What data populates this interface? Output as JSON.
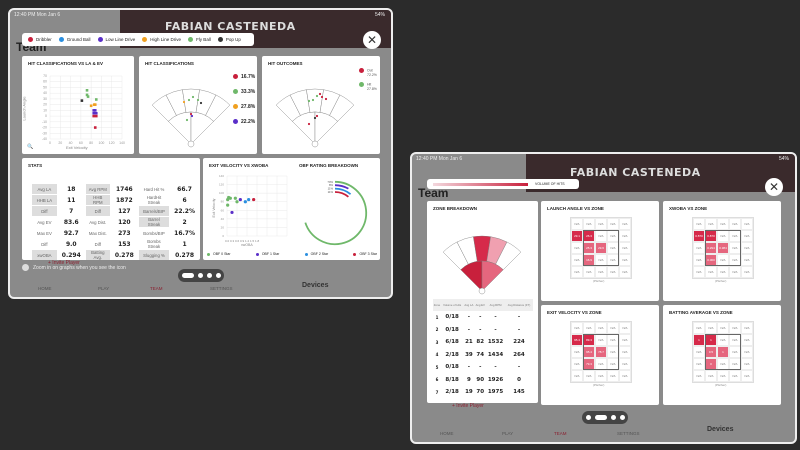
{
  "left": {
    "status_time": "12:40 PM  Mon Jan 6",
    "battery": "54%",
    "player_name": "FABIAN CASTENEDA",
    "bg_title": "Team",
    "legend": [
      {
        "label": "Dribbler",
        "color": "#c8203c"
      },
      {
        "label": "Ground Ball",
        "color": "#2a8fe0"
      },
      {
        "label": "Low Line Drive",
        "color": "#5a2fc8"
      },
      {
        "label": "High Line Drive",
        "color": "#f0a020"
      },
      {
        "label": "Fly Ball",
        "color": "#6fb86a"
      },
      {
        "label": "Pop Up",
        "color": "#333333"
      }
    ],
    "scatter": {
      "title": "HIT CLASSIFICATIONS VS LA & EV",
      "xlabel": "Exit Velocity",
      "ylabel": "Launch Angle",
      "xticks": [
        "0",
        "20",
        "40",
        "60",
        "80",
        "100",
        "120",
        "140"
      ],
      "yticks": [
        "70",
        "60",
        "50",
        "40",
        "30",
        "20",
        "10",
        "0",
        "-10",
        "-20",
        "-30",
        "-40"
      ],
      "points": [
        [
          72,
          45,
          4
        ],
        [
          72,
          37,
          4
        ],
        [
          74,
          34,
          4
        ],
        [
          62,
          27,
          5
        ],
        [
          90,
          29,
          4
        ],
        [
          80,
          18,
          3
        ],
        [
          86,
          20,
          3
        ],
        [
          88,
          20,
          3
        ],
        [
          85,
          10,
          2
        ],
        [
          88,
          10,
          2
        ],
        [
          85,
          5,
          2
        ],
        [
          90,
          5,
          2
        ],
        [
          85,
          0,
          0
        ],
        [
          90,
          0,
          0
        ],
        [
          88,
          -20,
          0
        ]
      ]
    },
    "hit_class": {
      "title": "HIT CLASSIFICATIONS",
      "pcts": [
        {
          "v": "16.7%",
          "color": "#c8203c"
        },
        {
          "v": "33.3%",
          "color": "#6fb86a"
        },
        {
          "v": "27.8%",
          "color": "#f0a020"
        },
        {
          "v": "22.2%",
          "color": "#5a2fc8"
        }
      ]
    },
    "hit_outcomes": {
      "title": "HIT OUTCOMES",
      "items": [
        {
          "label": "Out",
          "v": "72.2%",
          "color": "#c8203c"
        },
        {
          "label": "Hit",
          "v": "27.8%",
          "color": "#6fb86a"
        }
      ]
    },
    "stats": {
      "title": "STATS",
      "rows": [
        [
          "Avg LA",
          "18",
          "Avg RPM",
          "1746",
          "Hard Hit %",
          "66.7"
        ],
        [
          "HHB LA",
          "11",
          "HHB RPM",
          "1872",
          "HardHit Streak",
          "6"
        ],
        [
          "Diff",
          "7",
          "Diff",
          "127",
          "Barrels/BIP",
          "22.2%"
        ],
        [
          "Avg EV",
          "83.6",
          "Avg Dist.",
          "120",
          "Barrel Streak",
          "2"
        ],
        [
          "Max EV",
          "92.7",
          "Max Dist.",
          "273",
          "Bombs/BIP",
          "16.7%"
        ],
        [
          "Diff",
          "9.0",
          "Diff",
          "153",
          "Bombs Streak",
          "1"
        ],
        [
          "xwOBA",
          "0.294",
          "Batting Avg.",
          "0.278",
          "Slugging %",
          "0.278"
        ]
      ]
    },
    "ev_xwoba": {
      "title": "EXIT VELOCITY VS XWOBA",
      "xlabel": "xwOBA",
      "ylabel": "Exit Velocity",
      "yticks": [
        "140",
        "120",
        "100",
        "80",
        "60",
        "40",
        "20",
        "0"
      ],
      "xticks": "0.0 0.3 0.6 0.9 1.2 1.5 1.8"
    },
    "obf": {
      "title": "OBF RATING BREAKDOWN",
      "rings": [
        "70%",
        "8%",
        "11%",
        "11%"
      ]
    },
    "obf_legend": [
      {
        "label": "OBF 0 Star",
        "color": "#6fb86a"
      },
      {
        "label": "OBF 1 Star",
        "color": "#5a2fc8"
      },
      {
        "label": "OBF 2 Star",
        "color": "#2a8fe0"
      },
      {
        "label": "OBF 3 Star",
        "color": "#c8203c"
      }
    ],
    "hint": "Zoom in on graphs when you see the icon",
    "invite": "+ Invite Player",
    "nav": [
      "HOME",
      "PLAY",
      "TEAM",
      "SETTINGS"
    ],
    "devices": "Devices"
  },
  "right": {
    "status_time": "12:40 PM  Mon Jan 6",
    "battery": "54%",
    "player_name": "FABIAN CASTENEDA",
    "bg_title": "Team",
    "volume_label": "VOLUME OF HITS",
    "zone_breakdown": {
      "title": "ZONE BREAKDOWN",
      "headers": [
        "Zone",
        "Volume of Hits",
        "Avg LA",
        "Avg EV",
        "Avg RPM",
        "Avg Distance (FT)"
      ],
      "rows": [
        [
          "1",
          "0/18",
          "-",
          "-",
          "-",
          "-"
        ],
        [
          "2",
          "0/18",
          "-",
          "-",
          "-",
          "-"
        ],
        [
          "3",
          "6/18",
          "21",
          "82",
          "1532",
          "224"
        ],
        [
          "4",
          "2/18",
          "39",
          "74",
          "1434",
          "264"
        ],
        [
          "5",
          "0/18",
          "-",
          "-",
          "-",
          "-"
        ],
        [
          "6",
          "8/18",
          "9",
          "90",
          "1926",
          "0"
        ],
        [
          "7",
          "2/18",
          "19",
          "70",
          "1975",
          "145"
        ]
      ]
    },
    "grids": [
      {
        "title": "LAUNCH ANGLE VS ZONE",
        "caption": "(Pitcher)",
        "cells": {
          "5": "29.1",
          "6": "26.3",
          "11": "25.3",
          "12": "29.6",
          "16": "16.9"
        }
      },
      {
        "title": "XWOBA VS ZONE",
        "caption": "(Pitcher)",
        "cells": {
          "5": "0.870",
          "6": "0.870",
          "11": "0.294",
          "12": "0.384",
          "16": "0.000"
        }
      },
      {
        "title": "EXIT VELOCITY VS ZONE",
        "caption": "(Pitcher)",
        "cells": {
          "5": "95.4",
          "6": "89.3",
          "11": "95.4",
          "12": "78.7",
          "16": "79.3"
        }
      },
      {
        "title": "BATTING AVERAGE VS ZONE",
        "caption": "(Pitcher)",
        "cells": {
          "5": "1",
          "6": "1",
          "11": "0.5",
          "12": "1",
          "16": "0"
        }
      }
    ],
    "na": "N/A",
    "invite": "+ Invite Player",
    "nav": [
      "HOME",
      "PLAY",
      "TEAM",
      "SETTINGS"
    ],
    "devices": "Devices"
  }
}
